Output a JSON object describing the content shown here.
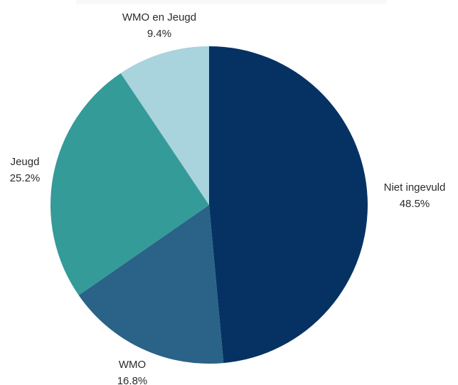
{
  "chart_data": {
    "type": "pie",
    "categories": [
      "Niet ingevuld",
      "WMO",
      "Jeugd",
      "WMO en Jeugd"
    ],
    "values": [
      48.5,
      16.8,
      25.2,
      9.4
    ],
    "value_labels": [
      "48.5%",
      "16.8%",
      "25.2%",
      "9.4%"
    ],
    "colors": [
      "#063263",
      "#2a6387",
      "#349b99",
      "#a9d3dd"
    ],
    "start": "12 o'clock",
    "direction": "clockwise",
    "legend": "none"
  }
}
